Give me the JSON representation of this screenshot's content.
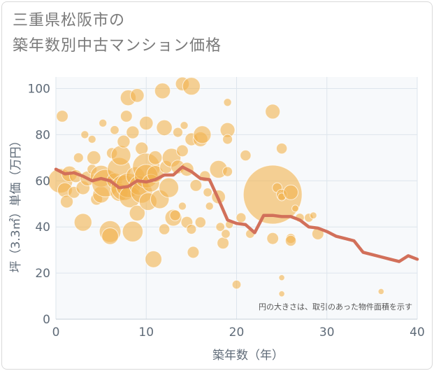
{
  "title": {
    "line1": "三重県松阪市の",
    "line2": "築年数別中古マンション価格"
  },
  "chart_data": {
    "type": "scatter",
    "xlabel": "築年数（年）",
    "ylabel": "坪（3.3㎡）単価（万円）",
    "xlim": [
      0,
      40
    ],
    "ylim": [
      0,
      105
    ],
    "xticks": [
      0,
      10,
      20,
      30,
      40
    ],
    "yticks": [
      0,
      20,
      40,
      60,
      80,
      100
    ],
    "grid": true,
    "annotation": "円の大きさは、取引のあった物件面積を示す",
    "colors": {
      "bubble": "#f2b24e",
      "line": "#d2705a",
      "grid": "#dde5ec",
      "plot_bg": "#f7f9fb"
    },
    "series": [
      {
        "type": "bubble",
        "points": [
          [
            0.5,
            60,
            2.5
          ],
          [
            0.7,
            88,
            1.2
          ],
          [
            1,
            56,
            1.5
          ],
          [
            1.2,
            51,
            1.3
          ],
          [
            1.5,
            63,
            1.6
          ],
          [
            2,
            55,
            1.2
          ],
          [
            2.2,
            62,
            1.3
          ],
          [
            2.5,
            70,
            1
          ],
          [
            3,
            42,
            1.8
          ],
          [
            3,
            57,
            1.4
          ],
          [
            3.2,
            80,
            0.8
          ],
          [
            3.5,
            61,
            1.5
          ],
          [
            4,
            78,
            0.8
          ],
          [
            4,
            65,
            1
          ],
          [
            4.2,
            70,
            1.4
          ],
          [
            4.5,
            52,
            1.2
          ],
          [
            5,
            54,
            1.7
          ],
          [
            5,
            62,
            2.2
          ],
          [
            5.2,
            85,
            0.8
          ],
          [
            5.5,
            59,
            2.8
          ],
          [
            6,
            38,
            2.2
          ],
          [
            6,
            36,
            1.7
          ],
          [
            6.2,
            72,
            1.1
          ],
          [
            6.5,
            60,
            1.6
          ],
          [
            6.5,
            82,
            0.9
          ],
          [
            7,
            55,
            1.8
          ],
          [
            7,
            65,
            2.4
          ],
          [
            7.2,
            71,
            2
          ],
          [
            7.5,
            77,
            1.3
          ],
          [
            7.5,
            57,
            2.6
          ],
          [
            7.8,
            88,
            1.2
          ],
          [
            8,
            96,
            1.6
          ],
          [
            8,
            58,
            2.5
          ],
          [
            8.2,
            53,
            2.2
          ],
          [
            8.5,
            81,
            1.3
          ],
          [
            8.5,
            38,
            2.1
          ],
          [
            8.8,
            62,
            1.9
          ],
          [
            9,
            97,
            1.4
          ],
          [
            9,
            46,
            1.6
          ],
          [
            9.2,
            58,
            2
          ],
          [
            9.5,
            55,
            2.2
          ],
          [
            9.5,
            74,
            1.3
          ],
          [
            10,
            66,
            2.8
          ],
          [
            10,
            62,
            2.4
          ],
          [
            10,
            85,
            1.4
          ],
          [
            10.2,
            51,
            1.8
          ],
          [
            10.5,
            59,
            1.8
          ],
          [
            10.8,
            26,
            1.7
          ],
          [
            11,
            70,
            1.4
          ],
          [
            11,
            63,
            1.7
          ],
          [
            11.5,
            52,
            1.9
          ],
          [
            11.8,
            99,
            1.6
          ],
          [
            12,
            83,
            1.6
          ],
          [
            12,
            39,
            1.1
          ],
          [
            12.2,
            66,
            1.3
          ],
          [
            12.5,
            57,
            2
          ],
          [
            12.8,
            70,
            1.9
          ],
          [
            13,
            44,
            1.7
          ],
          [
            13.2,
            45,
            1.1
          ],
          [
            13.5,
            81,
            1
          ],
          [
            13.5,
            66,
            1.4
          ],
          [
            14,
            102,
            1.4
          ],
          [
            14,
            73,
            1.2
          ],
          [
            14,
            49,
            0.8
          ],
          [
            14.2,
            84,
            0.8
          ],
          [
            14.5,
            65,
            1.4
          ],
          [
            14.5,
            42,
            1.2
          ],
          [
            15,
            101,
            1.8
          ],
          [
            15,
            78,
            1.3
          ],
          [
            15,
            39,
            1
          ],
          [
            15.2,
            29,
            1.2
          ],
          [
            15.5,
            58,
            1.2
          ],
          [
            16,
            42,
            1.1
          ],
          [
            16,
            78,
            1.5
          ],
          [
            16.2,
            80,
            1.8
          ],
          [
            16.5,
            62,
            1.1
          ],
          [
            16.8,
            55,
            0.9
          ],
          [
            17,
            49,
            0.8
          ],
          [
            18,
            65,
            1.8
          ],
          [
            18,
            53,
            1.4
          ],
          [
            18.2,
            40,
            0.9
          ],
          [
            18.5,
            33,
            1.2
          ],
          [
            18.8,
            37,
            0.9
          ],
          [
            19,
            94,
            0.8
          ],
          [
            19,
            82,
            1.5
          ],
          [
            19,
            78,
            1
          ],
          [
            19,
            64,
            1
          ],
          [
            19.2,
            41,
            0.8
          ],
          [
            20,
            15,
            0.9
          ],
          [
            20.5,
            44,
            1
          ],
          [
            21,
            71,
            1.1
          ],
          [
            21.5,
            37,
            0.9
          ],
          [
            24,
            90,
            1.5
          ],
          [
            24,
            54,
            6
          ],
          [
            24,
            35,
            1.2
          ],
          [
            24.5,
            57,
            1
          ],
          [
            25,
            74,
            1.1
          ],
          [
            25,
            54,
            1.1
          ],
          [
            25,
            53,
            0.8
          ],
          [
            25,
            18,
            0.6
          ],
          [
            25,
            11,
            0.6
          ],
          [
            26,
            55,
            1.5
          ],
          [
            26,
            35,
            1
          ],
          [
            26,
            34,
            1.1
          ],
          [
            26.5,
            48,
            0.7
          ],
          [
            27,
            44,
            0.9
          ],
          [
            28,
            44,
            0.9
          ],
          [
            28.5,
            45,
            0.7
          ],
          [
            29,
            37,
            1.2
          ],
          [
            36,
            12,
            0.6
          ]
        ]
      },
      {
        "type": "line",
        "points": [
          [
            0,
            65
          ],
          [
            1,
            63
          ],
          [
            2,
            63.5
          ],
          [
            3,
            62
          ],
          [
            4,
            60
          ],
          [
            5,
            61
          ],
          [
            6,
            60
          ],
          [
            7,
            57
          ],
          [
            8,
            57.5
          ],
          [
            9,
            60
          ],
          [
            10,
            59.5
          ],
          [
            11,
            60.5
          ],
          [
            12,
            62.5
          ],
          [
            13,
            62.5
          ],
          [
            14,
            66
          ],
          [
            15,
            64
          ],
          [
            16,
            61
          ],
          [
            17,
            60.5
          ],
          [
            18,
            52
          ],
          [
            19,
            43
          ],
          [
            20,
            41.5
          ],
          [
            21,
            41
          ],
          [
            22,
            37.5
          ],
          [
            23,
            45
          ],
          [
            24,
            45
          ],
          [
            25,
            44.5
          ],
          [
            26,
            44.5
          ],
          [
            27,
            43
          ],
          [
            28,
            40
          ],
          [
            29,
            39.5
          ],
          [
            30,
            38
          ],
          [
            31,
            36
          ],
          [
            32,
            35
          ],
          [
            33,
            34
          ],
          [
            34,
            29
          ],
          [
            35,
            28
          ],
          [
            36,
            27
          ],
          [
            37,
            26
          ],
          [
            38,
            25
          ],
          [
            39,
            27.5
          ],
          [
            40,
            26
          ]
        ]
      }
    ]
  }
}
